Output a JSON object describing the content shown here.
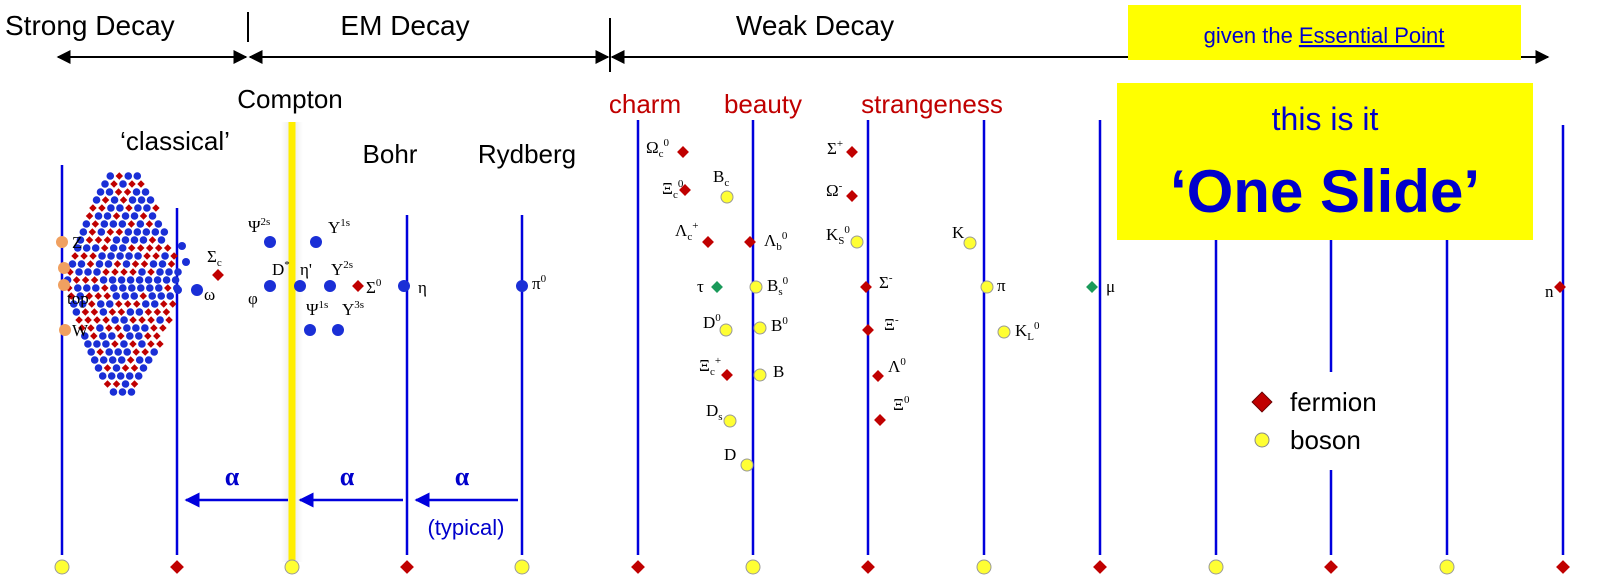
{
  "header": {
    "strong": "Strong Decay",
    "em": "EM Decay",
    "weak": "Weak Decay"
  },
  "note": {
    "prefix": "given the",
    "link": "Essential Point"
  },
  "headline": {
    "line1": "this is it",
    "line2": "‘One Slide’"
  },
  "scales": {
    "compton": "Compton",
    "classical": "‘classical’",
    "bohr": "Bohr",
    "rydberg": "Rydberg"
  },
  "flavors": {
    "charm": "charm",
    "beauty": "beauty",
    "strangeness": "strangeness"
  },
  "alpha": [
    "α",
    "α",
    "α"
  ],
  "typical": "(typical)",
  "legend": {
    "fermion": "fermion",
    "boson": "boson"
  },
  "particles": [
    {
      "label": "Z"
    },
    {
      "label": "Higgs'"
    },
    {
      "label": "top"
    },
    {
      "label": "W"
    },
    {
      "label": "Σ",
      "sub": "c"
    },
    {
      "label": "ω"
    },
    {
      "label": "Ψ",
      "sup": "2s"
    },
    {
      "label": "Υ",
      "sup": "1s"
    },
    {
      "label": "D",
      "sup": "*"
    },
    {
      "label": "η'"
    },
    {
      "label": "Υ",
      "sup": "2s"
    },
    {
      "label": "Σ",
      "sup": "0"
    },
    {
      "label": "η"
    },
    {
      "label": "φ"
    },
    {
      "label": "Ψ",
      "sup": "1s"
    },
    {
      "label": "Υ",
      "sup": "3s"
    },
    {
      "label": "π",
      "sup": "0"
    },
    {
      "label": "Ω",
      "sub": "c",
      "sup": "0"
    },
    {
      "label": "Ξ",
      "sub": "c",
      "sup": "0"
    },
    {
      "label": "B",
      "sub": "c"
    },
    {
      "label": "Λ",
      "sub": "c",
      "sup": "+"
    },
    {
      "label": "Λ",
      "sub": "b",
      "sup": "0"
    },
    {
      "label": "τ"
    },
    {
      "label": "B",
      "sub": "s",
      "sup": "0"
    },
    {
      "label": "D",
      "sup": "0"
    },
    {
      "label": "B",
      "sup": "0"
    },
    {
      "label": "Ξ",
      "sub": "c",
      "sup": "+"
    },
    {
      "label": "B"
    },
    {
      "label": "D",
      "sub": "s"
    },
    {
      "label": "D"
    },
    {
      "label": "Σ",
      "sup": "+"
    },
    {
      "label": "Ω",
      "sup": "-"
    },
    {
      "label": "K",
      "sub": "S",
      "sup": "0"
    },
    {
      "label": "Σ",
      "sup": "-"
    },
    {
      "label": "Ξ",
      "sup": "-"
    },
    {
      "label": "Λ",
      "sup": "0"
    },
    {
      "label": "Ξ",
      "sup": "0"
    },
    {
      "label": "K"
    },
    {
      "label": "π"
    },
    {
      "label": "K",
      "sub": "L",
      "sup": "0"
    },
    {
      "label": "μ"
    },
    {
      "label": "n"
    }
  ]
}
